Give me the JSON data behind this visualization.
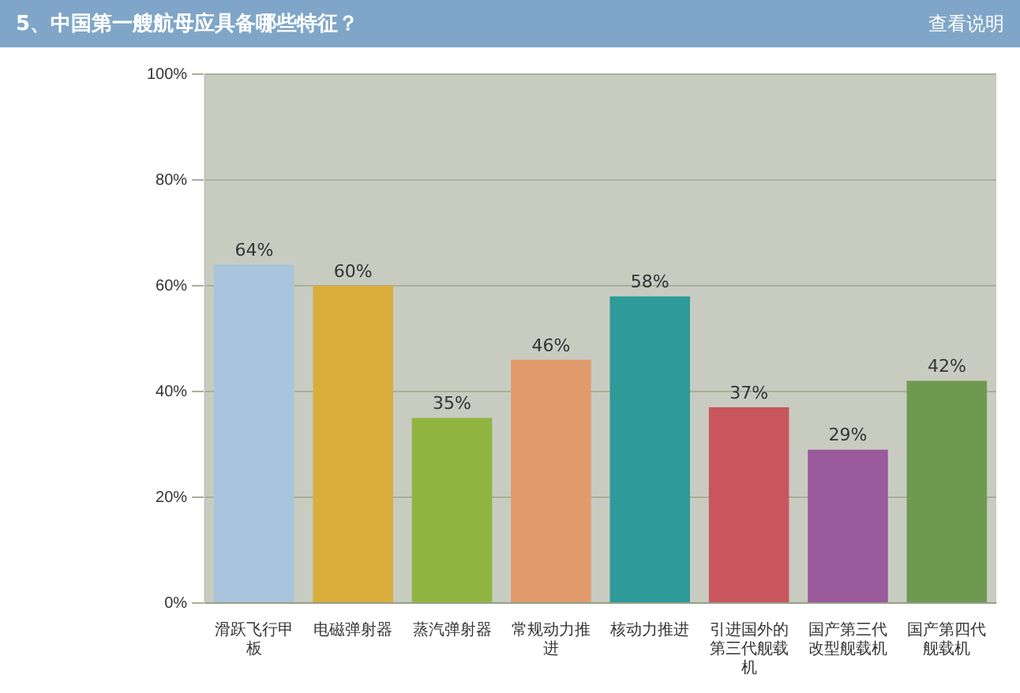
{
  "chart_data": {
    "type": "bar",
    "title": "5、中国第一艘航母应具备哪些特征？",
    "annotations": [
      "查看说明"
    ],
    "categories": [
      "滑跃飞行甲板",
      "电磁弹射器",
      "蒸汽弹射器",
      "常规动力推进",
      "核动力推进",
      "引进国外的第三代舰载机",
      "国产第三代改型舰载机",
      "国产第四代舰载机"
    ],
    "values": [
      64,
      60,
      35,
      46,
      58,
      37,
      29,
      42
    ],
    "value_labels": [
      "64%",
      "60%",
      "35%",
      "46%",
      "58%",
      "37%",
      "29%",
      "42%"
    ],
    "colors": [
      "#a9c4dc",
      "#d9ad3c",
      "#8fb540",
      "#e09a6c",
      "#2e9a9a",
      "#c9565e",
      "#9a5a9c",
      "#6e9a50"
    ],
    "ylim": [
      0,
      100
    ],
    "yticks": [
      {
        "value": 0,
        "label": "0%"
      },
      {
        "value": 20,
        "label": "20%"
      },
      {
        "value": 40,
        "label": "40%"
      },
      {
        "value": 60,
        "label": "60%"
      },
      {
        "value": 80,
        "label": "80%"
      },
      {
        "value": 100,
        "label": "100%"
      }
    ],
    "grid": "y",
    "legend": false
  }
}
